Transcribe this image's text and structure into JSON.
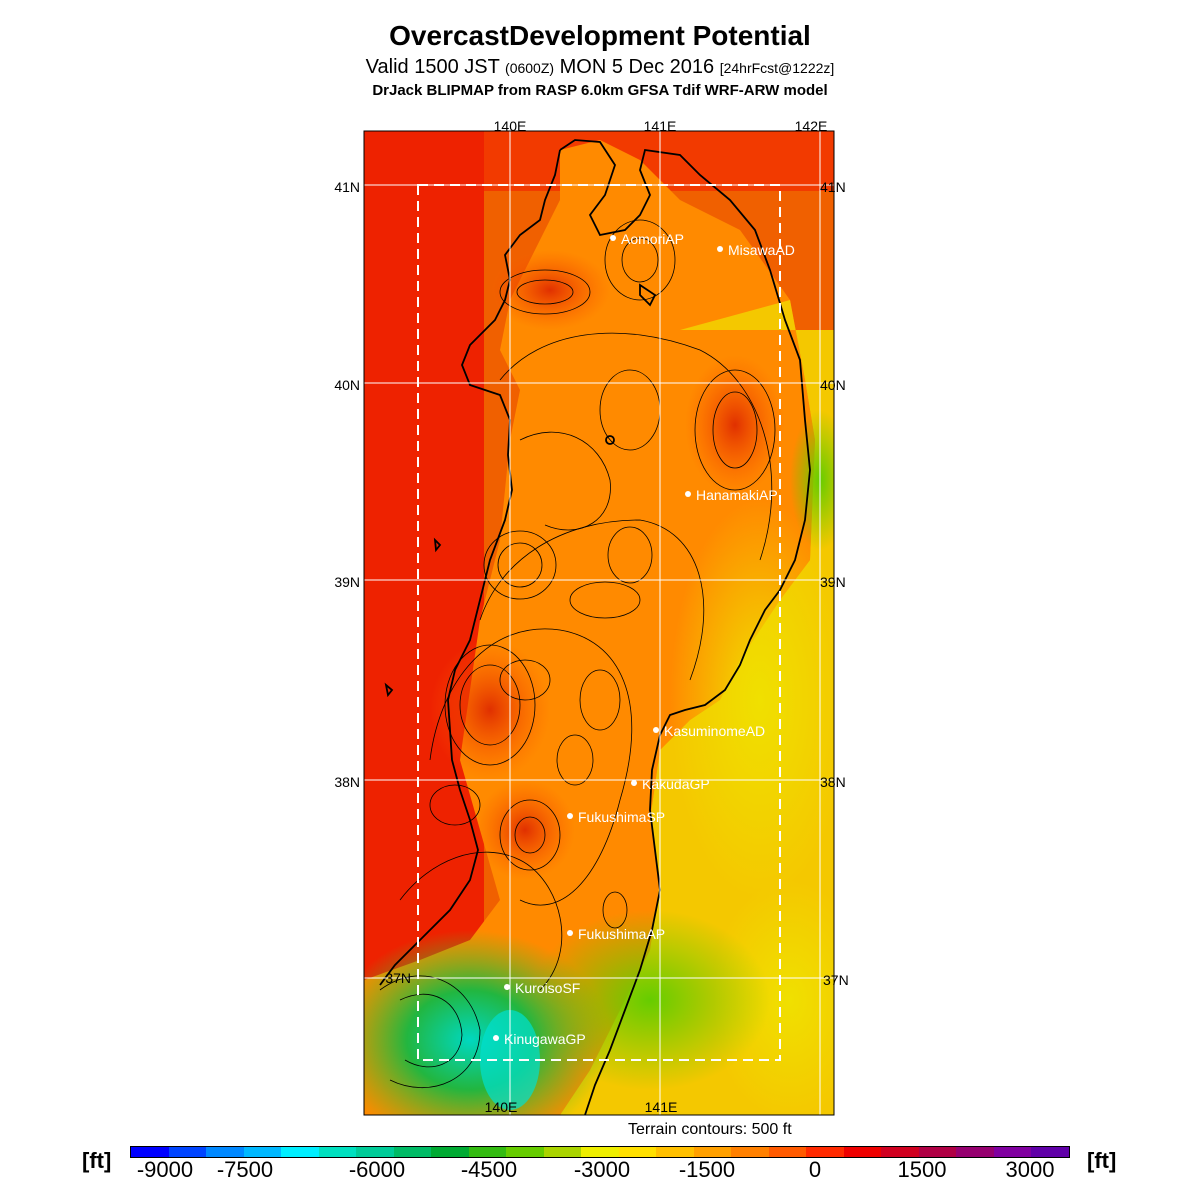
{
  "header": {
    "title": "OvercastDevelopment Potential",
    "valid_prefix": "Valid 1500 JST",
    "valid_utc": "(0600Z)",
    "valid_date": "MON 5 Dec 2016",
    "forecast": "[24hrFcst@1222z]",
    "model": "DrJack BLIPMAP from RASP 6.0km GFSA Tdif WRF-ARW model"
  },
  "map": {
    "lon_labels": [
      "140E",
      "141E",
      "142E"
    ],
    "lat_labels": [
      "41N",
      "40N",
      "39N",
      "38N",
      "37N"
    ],
    "stations": [
      {
        "name": "AomoriAP"
      },
      {
        "name": "MisawaAD"
      },
      {
        "name": "HanamakiAP"
      },
      {
        "name": "KasuminomeAD"
      },
      {
        "name": "KakudaGP"
      },
      {
        "name": "FukushimaSP"
      },
      {
        "name": "FukushimaAP"
      },
      {
        "name": "KuroisoSF"
      },
      {
        "name": "KinugawaGP"
      }
    ],
    "terrain_note": "Terrain contours: 500 ft"
  },
  "legend": {
    "unit": "[ft]",
    "ticks": [
      "-9000",
      "-7500",
      "-6000",
      "-4500",
      "-3000",
      "-1500",
      "0",
      "1500",
      "3000"
    ],
    "colors": [
      "#0000ff",
      "#0044ff",
      "#0088ff",
      "#00b8ff",
      "#00eeff",
      "#00e0c0",
      "#00cc99",
      "#00bb66",
      "#00aa33",
      "#33bb11",
      "#66cc00",
      "#aad400",
      "#eeee00",
      "#ffe000",
      "#ffc000",
      "#ffa000",
      "#ff8000",
      "#ff5a00",
      "#ff2a00",
      "#ee0000",
      "#d00020",
      "#b00045",
      "#960070",
      "#8000a0",
      "#6000a8"
    ]
  }
}
